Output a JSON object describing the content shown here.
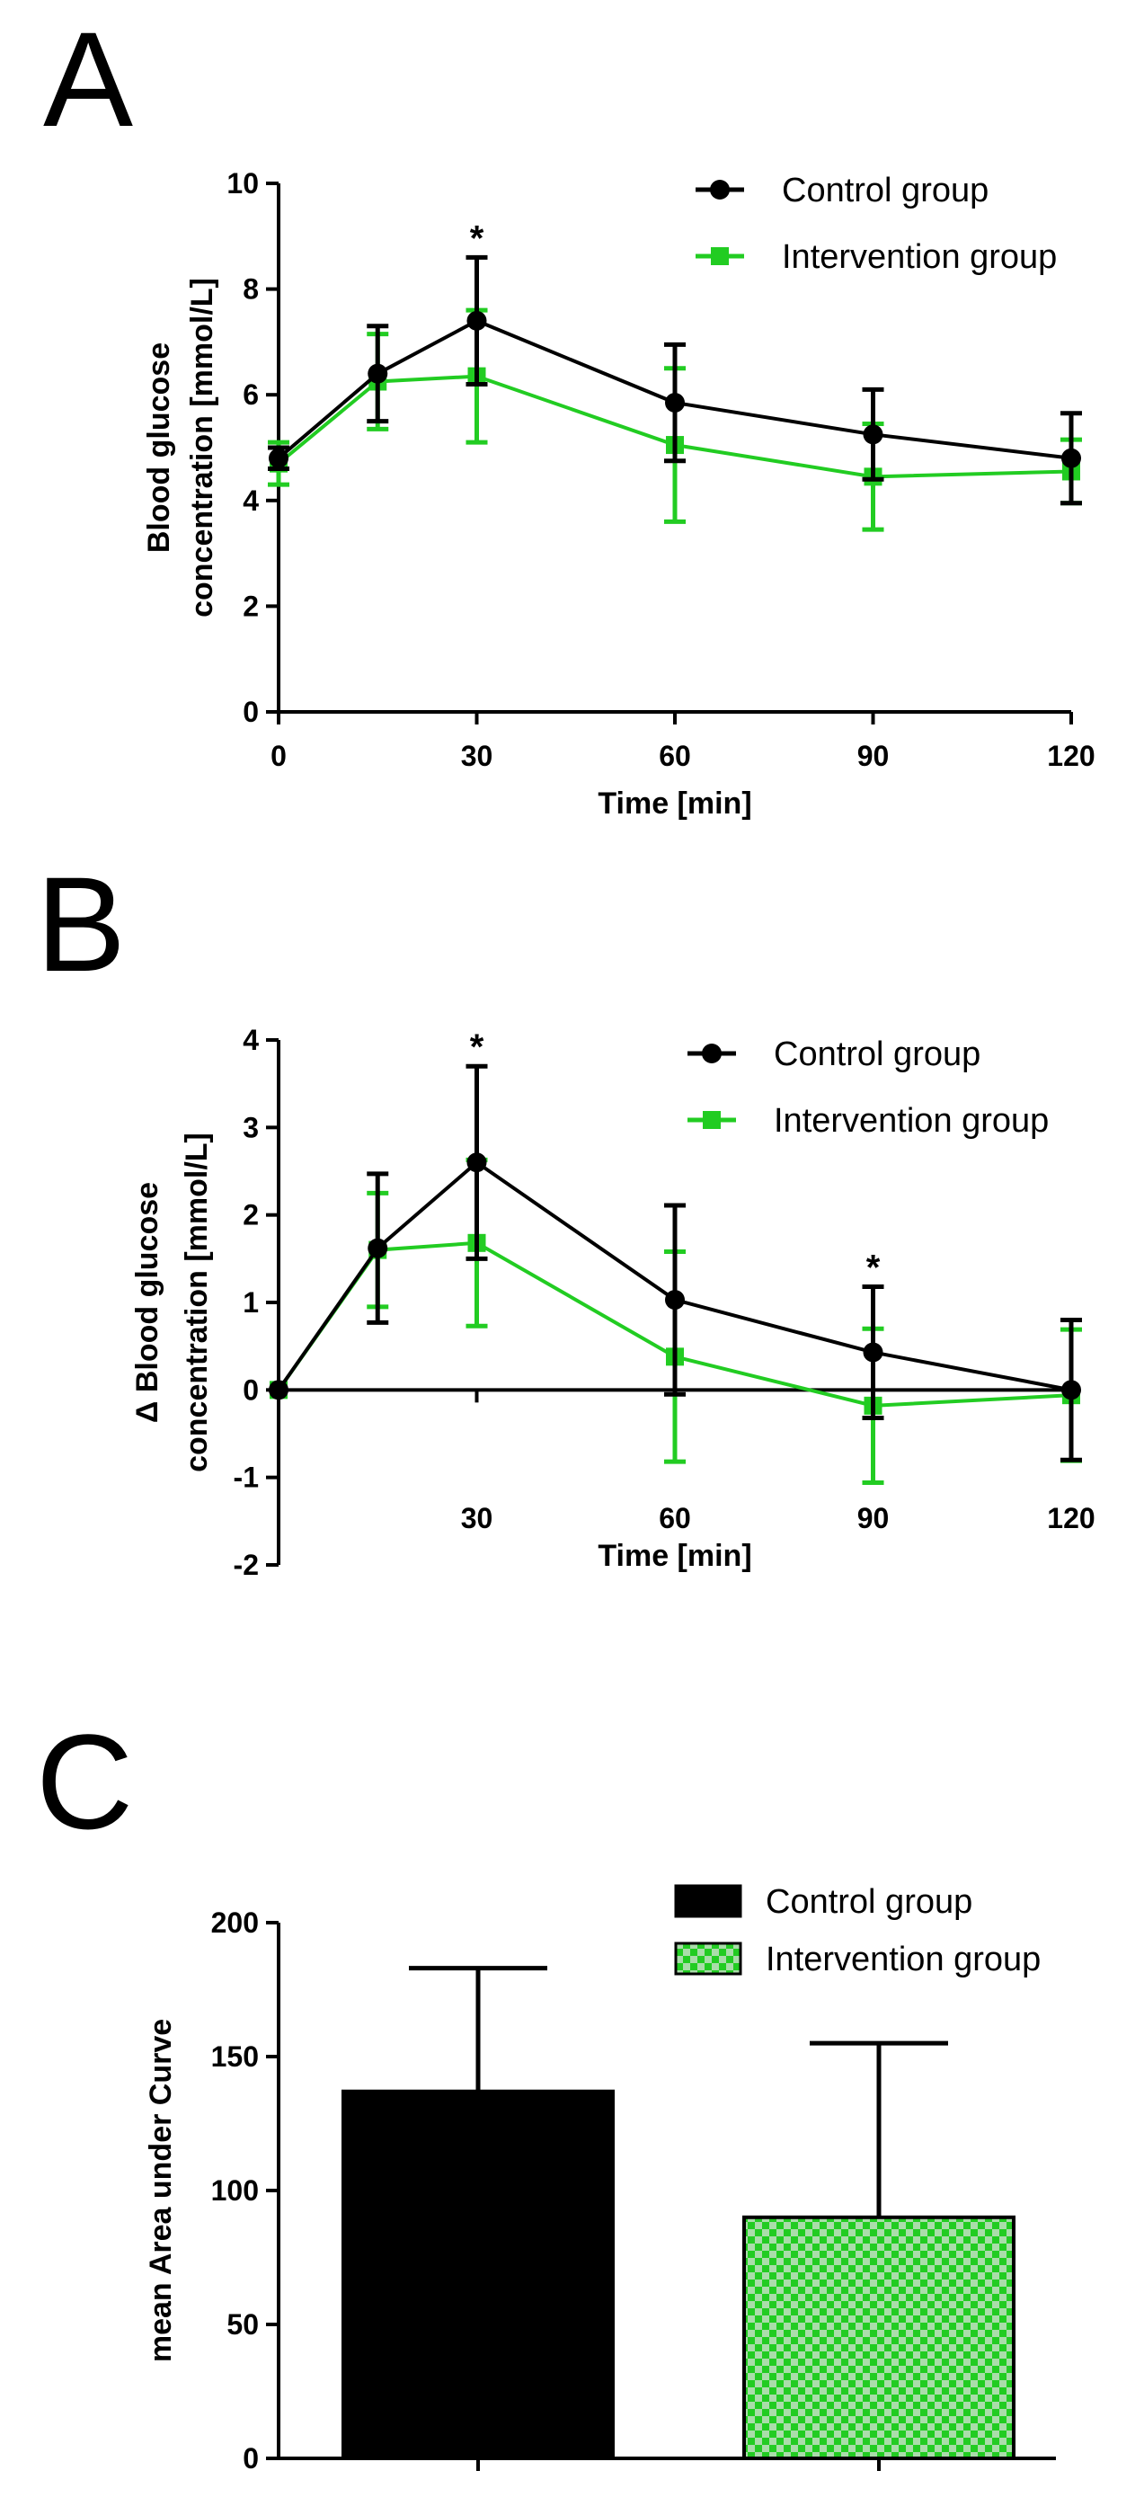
{
  "colors": {
    "control": "#000000",
    "intervention": "#22cc22",
    "intervention_alt": "#aaddaa"
  },
  "chart_data": [
    {
      "type": "line",
      "panel": "A",
      "title": "",
      "xlabel": "Time [min]",
      "ylabel_lines": [
        "Blood glucose",
        "concentration [mmol/L]"
      ],
      "x": [
        0,
        15,
        30,
        60,
        90,
        120
      ],
      "xticks": [
        0,
        30,
        60,
        90,
        120
      ],
      "xtick_labels": [
        "0",
        "30",
        "60",
        "90",
        "120"
      ],
      "xlim": [
        0,
        120
      ],
      "ylim": [
        0,
        10
      ],
      "yticks": [
        0,
        2,
        4,
        6,
        8,
        10
      ],
      "ytick_labels": [
        "0",
        "2",
        "4",
        "6",
        "8",
        "10"
      ],
      "legend": [
        "Control group",
        "Intervention group"
      ],
      "legend_position": "top-right",
      "series": [
        {
          "name": "Control group",
          "marker": "circle",
          "values": [
            4.8,
            6.4,
            7.4,
            5.85,
            5.25,
            4.8
          ],
          "errors": [
            0.2,
            0.9,
            1.2,
            1.1,
            0.85,
            0.85
          ]
        },
        {
          "name": "Intervention group",
          "marker": "square",
          "values": [
            4.7,
            6.25,
            6.35,
            5.05,
            4.45,
            4.55
          ],
          "errors": [
            0.4,
            0.9,
            1.25,
            1.45,
            1.0,
            0.6
          ]
        }
      ],
      "annotations": [
        {
          "x": 30,
          "text": "*"
        }
      ]
    },
    {
      "type": "line",
      "panel": "B",
      "title": "",
      "xlabel": "Time [min]",
      "ylabel_lines": [
        "Δ Blood glucose",
        "concentration [mmol/L]"
      ],
      "x": [
        0,
        15,
        30,
        60,
        90,
        120
      ],
      "xticks": [
        30,
        60,
        90,
        120
      ],
      "xtick_labels": [
        "30",
        "60",
        "90",
        "120"
      ],
      "xlim": [
        0,
        120
      ],
      "ylim": [
        -2,
        4
      ],
      "yticks": [
        -2,
        -1,
        0,
        1,
        2,
        3,
        4
      ],
      "ytick_labels": [
        "-2",
        "-1",
        "0",
        "1",
        "2",
        "3",
        "4"
      ],
      "legend": [
        "Control group",
        "Intervention group"
      ],
      "legend_position": "top-right",
      "series": [
        {
          "name": "Control group",
          "marker": "circle",
          "values": [
            0,
            1.62,
            2.6,
            1.03,
            0.43,
            0.0
          ],
          "errors": [
            0,
            0.85,
            1.1,
            1.08,
            0.75,
            0.8
          ]
        },
        {
          "name": "Intervention group",
          "marker": "square",
          "values": [
            0,
            1.6,
            1.68,
            0.38,
            -0.18,
            -0.06
          ],
          "errors": [
            0,
            0.65,
            0.95,
            1.2,
            0.88,
            0.75
          ]
        }
      ],
      "annotations": [
        {
          "x": 30,
          "text": "*"
        },
        {
          "x": 90,
          "text": "*"
        }
      ]
    },
    {
      "type": "bar",
      "panel": "C",
      "title": "",
      "xlabel": "",
      "ylabel": "mean Area under Curve",
      "categories": [
        "Control group",
        "Intervention group"
      ],
      "legend": [
        "Control group",
        "Intervention group"
      ],
      "legend_position": "top-right",
      "series": [
        {
          "name": "mean",
          "values": [
            137,
            90
          ],
          "errors": [
            46,
            65
          ]
        }
      ],
      "ylim": [
        0,
        200
      ],
      "yticks": [
        0,
        50,
        100,
        150,
        200
      ],
      "ytick_labels": [
        "0",
        "50",
        "100",
        "150",
        "200"
      ]
    }
  ]
}
